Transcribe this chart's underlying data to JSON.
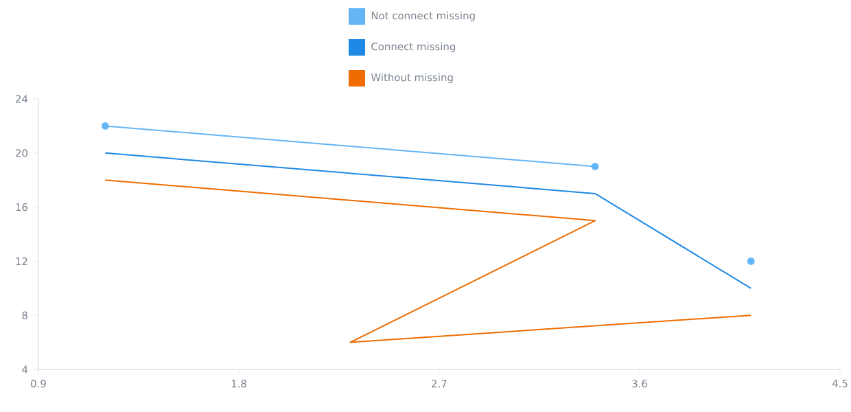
{
  "chart_data": {
    "type": "line",
    "x": [
      1.2,
      3.4,
      2.3,
      4.1
    ],
    "series": [
      {
        "name": "Not connect missing",
        "color": "#64b5f6",
        "values": [
          22,
          19,
          null,
          12
        ],
        "marker": "circle"
      },
      {
        "name": "Connect missing",
        "color": "#1e88e5",
        "x": [
          1.2,
          3.4,
          4.1
        ],
        "values": [
          20,
          17,
          10
        ]
      },
      {
        "name": "Without missing",
        "color": "#ef6c00",
        "values": [
          18,
          15,
          6,
          8
        ]
      }
    ],
    "xlim": [
      0.9,
      4.5
    ],
    "xticks": [
      0.9,
      1.8,
      2.7,
      3.6,
      4.5
    ],
    "ylim": [
      4,
      24
    ],
    "yticks": [
      4,
      8,
      12,
      16,
      20,
      24
    ],
    "grid": false,
    "legend": "top"
  }
}
